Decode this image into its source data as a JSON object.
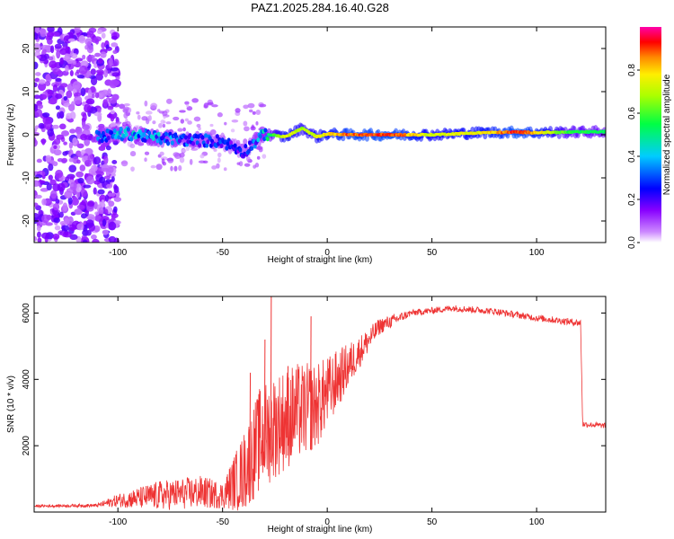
{
  "title": "PAZ1.2025.284.16.40.G28",
  "chart_data": [
    {
      "type": "heatmap",
      "name": "spectrogram",
      "xlabel": "Height of straight line (km)",
      "ylabel": "Frequency (Hz)",
      "xlim": [
        -140,
        133
      ],
      "ylim": [
        -25,
        25
      ],
      "xticks": [
        -100,
        -50,
        0,
        50,
        100
      ],
      "yticks": [
        -20,
        -10,
        0,
        10,
        20
      ],
      "colorbar": {
        "label": "Normalized spectral amplitude",
        "range": [
          0,
          1
        ],
        "ticks": [
          "0.0",
          "0.2",
          "0.4",
          "0.6",
          "0.8"
        ]
      },
      "ridge": [
        {
          "x": -110,
          "y": -0.5,
          "amp": 0.35
        },
        {
          "x": -95,
          "y": 0.3,
          "amp": 0.45
        },
        {
          "x": -80,
          "y": -0.8,
          "amp": 0.4
        },
        {
          "x": -65,
          "y": -1.2,
          "amp": 0.35
        },
        {
          "x": -50,
          "y": -1.5,
          "amp": 0.3
        },
        {
          "x": -40,
          "y": -4,
          "amp": 0.25
        },
        {
          "x": -30,
          "y": 0.2,
          "amp": 0.45
        },
        {
          "x": -20,
          "y": -0.5,
          "amp": 0.8
        },
        {
          "x": -12,
          "y": 1.5,
          "amp": 0.7
        },
        {
          "x": -5,
          "y": -0.5,
          "amp": 0.75
        },
        {
          "x": 0,
          "y": 0.2,
          "amp": 0.8
        },
        {
          "x": 10,
          "y": 0,
          "amp": 0.92
        },
        {
          "x": 30,
          "y": 0,
          "amp": 0.95
        },
        {
          "x": 50,
          "y": 0,
          "amp": 0.75
        },
        {
          "x": 75,
          "y": 0.5,
          "amp": 0.8
        },
        {
          "x": 90,
          "y": 0.6,
          "amp": 0.95
        },
        {
          "x": 100,
          "y": 0.5,
          "amp": 0.85
        },
        {
          "x": 115,
          "y": 0.6,
          "amp": 0.6
        },
        {
          "x": 133,
          "y": 0.7,
          "amp": 0.55
        }
      ]
    },
    {
      "type": "line",
      "name": "snr",
      "xlabel": "Height of straight line (km)",
      "ylabel": "SNR (10 * v/v)",
      "xlim": [
        -140,
        133
      ],
      "ylim": [
        0,
        6500
      ],
      "xticks": [
        -100,
        -50,
        0,
        50,
        100
      ],
      "yticks": [
        2000,
        4000,
        6000
      ],
      "color": "#ee3333",
      "envelope": [
        {
          "x": -140,
          "y": 180,
          "noise": 40
        },
        {
          "x": -110,
          "y": 200,
          "noise": 50
        },
        {
          "x": -100,
          "y": 350,
          "noise": 200
        },
        {
          "x": -80,
          "y": 500,
          "noise": 450
        },
        {
          "x": -60,
          "y": 600,
          "noise": 500
        },
        {
          "x": -50,
          "y": 500,
          "noise": 400
        },
        {
          "x": -40,
          "y": 1200,
          "noise": 1200
        },
        {
          "x": -32,
          "y": 2200,
          "noise": 1600
        },
        {
          "x": -25,
          "y": 2600,
          "noise": 1600
        },
        {
          "x": -15,
          "y": 3000,
          "noise": 1500
        },
        {
          "x": -5,
          "y": 3200,
          "noise": 1300
        },
        {
          "x": 5,
          "y": 4000,
          "noise": 900
        },
        {
          "x": 15,
          "y": 4800,
          "noise": 500
        },
        {
          "x": 25,
          "y": 5600,
          "noise": 250
        },
        {
          "x": 40,
          "y": 6000,
          "noise": 100
        },
        {
          "x": 60,
          "y": 6150,
          "noise": 100
        },
        {
          "x": 80,
          "y": 6050,
          "noise": 100
        },
        {
          "x": 100,
          "y": 5850,
          "noise": 100
        },
        {
          "x": 121,
          "y": 5700,
          "noise": 110
        },
        {
          "x": 122,
          "y": 2650,
          "noise": 90
        },
        {
          "x": 133,
          "y": 2600,
          "noise": 80
        }
      ],
      "spikes": [
        {
          "x": -27,
          "y": 6500
        },
        {
          "x": -30,
          "y": 5200
        },
        {
          "x": -8,
          "y": 5900
        },
        {
          "x": -37,
          "y": 4200
        },
        {
          "x": -19,
          "y": 4400
        }
      ]
    }
  ]
}
